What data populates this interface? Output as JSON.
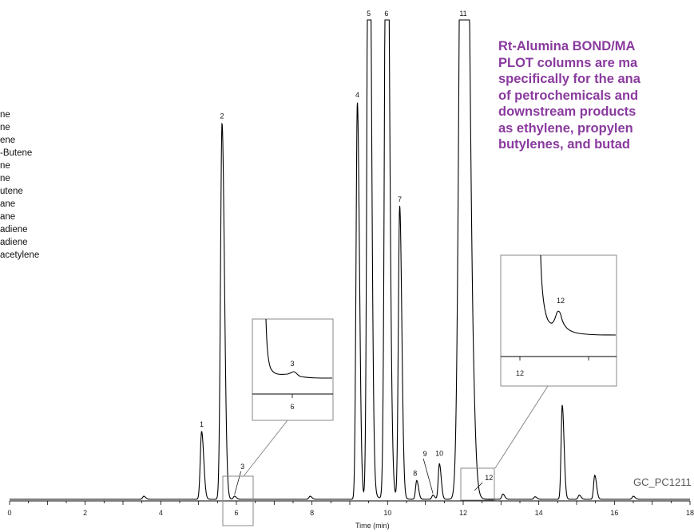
{
  "legend_items": [
    "ne",
    "ne",
    "ene",
    "-Butene",
    "ne",
    "ne",
    "utene",
    "ane",
    "ane",
    "adiene",
    "adiene",
    "acetylene"
  ],
  "headline_lines": [
    "Rt-Alumina BOND/MA",
    "PLOT columns are ma",
    "specifically for the ana",
    "of petrochemicals and",
    "downstream products",
    "as ethylene, propylen",
    "butylenes, and butad"
  ],
  "figure_code": "GC_PC1211",
  "chart_data": {
    "type": "line",
    "title": "",
    "xlabel": "Time (min)",
    "ylabel": "",
    "xlim": [
      0,
      18
    ],
    "ylim": [
      0,
      100
    ],
    "x_ticks": [
      0,
      2,
      4,
      6,
      8,
      10,
      12,
      14,
      16,
      18
    ],
    "x_tick_labels": [
      "0",
      "2",
      "4",
      "6",
      "8",
      "10",
      "12",
      "14",
      "16",
      "18"
    ],
    "grid": false,
    "legend": "none",
    "line_color": "#000000",
    "series": [
      {
        "peaks": [
          {
            "label": "1",
            "x": 5.08,
            "y": 13.0,
            "w": 0.035
          },
          {
            "label": "2",
            "x": 5.62,
            "y": 72.0,
            "w": 0.04
          },
          {
            "label": "3",
            "x": 5.95,
            "y": 0.6,
            "w": 0.03
          },
          {
            "label": "4",
            "x": 9.2,
            "y": 76.0,
            "w": 0.035
          },
          {
            "label": "5",
            "x": 9.5,
            "y": 150.0,
            "w": 0.04
          },
          {
            "label": "6",
            "x": 9.97,
            "y": 150.0,
            "w": 0.045
          },
          {
            "label": "7",
            "x": 10.32,
            "y": 56.0,
            "w": 0.035
          },
          {
            "label": "8",
            "x": 10.77,
            "y": 3.6,
            "w": 0.03
          },
          {
            "label": "9",
            "x": 11.2,
            "y": 0.8,
            "w": 0.03
          },
          {
            "label": "10",
            "x": 11.37,
            "y": 6.8,
            "w": 0.03
          },
          {
            "label": "11",
            "x": 12.0,
            "y": 200.0,
            "w": 0.085
          },
          {
            "label": "12",
            "x": 12.3,
            "y": 1.4,
            "w": 0.03
          },
          {
            "label": "",
            "x": 3.55,
            "y": 0.6,
            "w": 0.03
          },
          {
            "label": "",
            "x": 7.95,
            "y": 0.6,
            "w": 0.03
          },
          {
            "label": "",
            "x": 13.05,
            "y": 1.0,
            "w": 0.03
          },
          {
            "label": "",
            "x": 13.9,
            "y": 0.5,
            "w": 0.03
          },
          {
            "label": "",
            "x": 14.62,
            "y": 18.0,
            "w": 0.03
          },
          {
            "label": "",
            "x": 15.07,
            "y": 0.8,
            "w": 0.03
          },
          {
            "label": "",
            "x": 15.48,
            "y": 4.6,
            "w": 0.03
          },
          {
            "label": "",
            "x": 16.5,
            "y": 0.6,
            "w": 0.03
          }
        ]
      }
    ],
    "insets": [
      {
        "zoom_peak": "3",
        "x_tick_label": "6"
      },
      {
        "zoom_peak": "12",
        "x_tick_label": "12"
      }
    ]
  }
}
